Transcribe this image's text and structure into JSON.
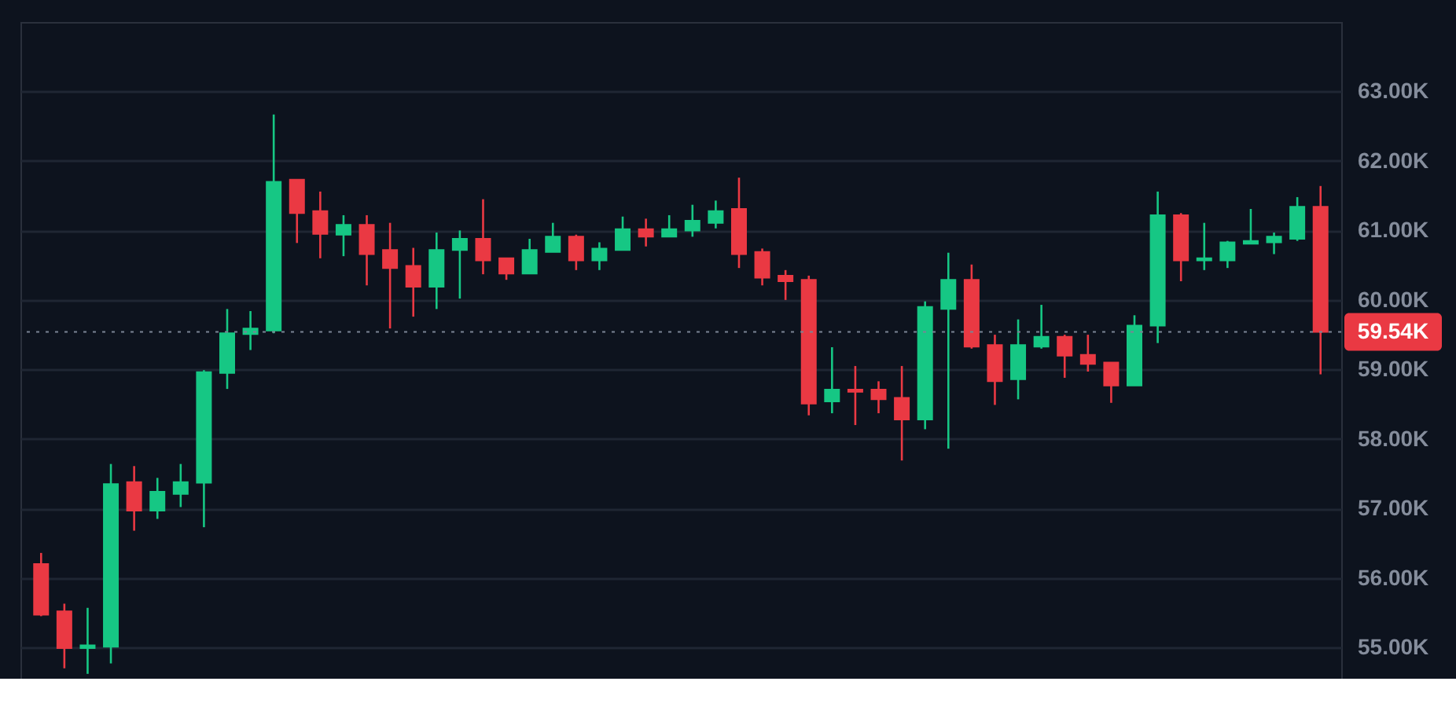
{
  "chart_data": {
    "type": "candlestick",
    "categories": [
      null,
      null,
      null,
      null,
      null,
      null,
      null,
      null,
      null,
      null,
      null,
      null,
      null,
      null,
      null,
      null,
      null,
      null,
      null,
      null,
      null,
      null,
      null,
      null,
      null,
      null,
      null,
      null,
      null,
      null,
      null,
      null,
      null,
      null,
      null,
      null,
      null,
      null,
      null,
      null,
      null,
      null,
      null,
      null,
      null,
      null,
      null,
      null,
      null,
      null,
      null,
      null,
      null,
      null,
      null,
      null
    ],
    "ohlc": [
      [
        56.2,
        56.36,
        55.45,
        55.47
      ],
      [
        55.52,
        55.63,
        54.7,
        54.99
      ],
      [
        54.99,
        55.57,
        54.62,
        55.03
      ],
      [
        55.01,
        57.64,
        54.77,
        57.35
      ],
      [
        57.38,
        57.61,
        56.68,
        56.97
      ],
      [
        56.97,
        57.44,
        56.85,
        57.24
      ],
      [
        57.21,
        57.64,
        57.02,
        57.38
      ],
      [
        57.37,
        58.99,
        56.73,
        58.96
      ],
      [
        58.95,
        59.87,
        58.72,
        59.52
      ],
      [
        59.51,
        59.84,
        59.28,
        59.59
      ],
      [
        59.56,
        62.67,
        59.52,
        61.7
      ],
      [
        61.73,
        61.73,
        60.82,
        61.25
      ],
      [
        61.28,
        61.56,
        60.6,
        60.95
      ],
      [
        60.94,
        61.22,
        60.63,
        61.08
      ],
      [
        61.08,
        61.22,
        60.21,
        60.66
      ],
      [
        60.72,
        61.11,
        59.59,
        60.46
      ],
      [
        60.49,
        60.75,
        59.76,
        60.19
      ],
      [
        60.19,
        60.97,
        59.87,
        60.72
      ],
      [
        60.72,
        61.0,
        60.02,
        60.88
      ],
      [
        60.88,
        61.45,
        60.37,
        60.57
      ],
      [
        60.6,
        60.6,
        60.29,
        60.38
      ],
      [
        60.38,
        60.88,
        60.38,
        60.72
      ],
      [
        60.69,
        61.11,
        60.69,
        60.91
      ],
      [
        60.91,
        60.94,
        60.43,
        60.57
      ],
      [
        60.57,
        60.83,
        60.43,
        60.74
      ],
      [
        60.72,
        61.2,
        60.72,
        61.02
      ],
      [
        61.02,
        61.17,
        60.77,
        60.91
      ],
      [
        60.91,
        61.22,
        60.91,
        61.02
      ],
      [
        61.0,
        61.37,
        60.91,
        61.14
      ],
      [
        61.11,
        61.43,
        61.03,
        61.28
      ],
      [
        61.31,
        61.76,
        60.46,
        60.66
      ],
      [
        60.69,
        60.74,
        60.21,
        60.32
      ],
      [
        60.35,
        60.43,
        60.0,
        60.27
      ],
      [
        60.29,
        60.35,
        58.34,
        58.51
      ],
      [
        58.54,
        59.32,
        58.37,
        58.71
      ],
      [
        58.71,
        59.05,
        58.2,
        58.68
      ],
      [
        58.71,
        58.83,
        58.37,
        58.57
      ],
      [
        58.59,
        59.05,
        57.69,
        58.28
      ],
      [
        58.28,
        59.98,
        58.14,
        59.9
      ],
      [
        59.87,
        60.68,
        57.86,
        60.29
      ],
      [
        60.29,
        60.51,
        59.3,
        59.33
      ],
      [
        59.35,
        59.5,
        58.49,
        58.83
      ],
      [
        58.86,
        59.72,
        58.57,
        59.35
      ],
      [
        59.33,
        59.93,
        59.3,
        59.47
      ],
      [
        59.47,
        59.5,
        58.88,
        59.2
      ],
      [
        59.21,
        59.5,
        58.97,
        59.08
      ],
      [
        59.1,
        59.1,
        58.52,
        58.77
      ],
      [
        58.77,
        59.78,
        58.77,
        59.63
      ],
      [
        59.63,
        61.56,
        59.38,
        61.22
      ],
      [
        61.22,
        61.25,
        60.27,
        60.57
      ],
      [
        60.57,
        61.11,
        60.43,
        60.6
      ],
      [
        60.57,
        60.85,
        60.46,
        60.83
      ],
      [
        60.81,
        61.31,
        60.81,
        60.85
      ],
      [
        60.83,
        60.97,
        60.66,
        60.91
      ],
      [
        60.88,
        61.48,
        60.85,
        61.34
      ],
      [
        61.34,
        61.64,
        58.93,
        59.54
      ]
    ],
    "colors": [
      "#ea3943",
      "#ea3943",
      "#16c784",
      "#16c784",
      "#ea3943",
      "#16c784",
      "#16c784",
      "#16c784",
      "#16c784",
      "#16c784",
      "#16c784",
      "#ea3943",
      "#ea3943",
      "#16c784",
      "#ea3943",
      "#ea3943",
      "#ea3943",
      "#16c784",
      "#16c784",
      "#ea3943",
      "#ea3943",
      "#16c784",
      "#16c784",
      "#ea3943",
      "#16c784",
      "#16c784",
      "#ea3943",
      "#16c784",
      "#16c784",
      "#16c784",
      "#ea3943",
      "#ea3943",
      "#ea3943",
      "#ea3943",
      "#16c784",
      "#ea3943",
      "#ea3943",
      "#ea3943",
      "#16c784",
      "#16c784",
      "#ea3943",
      "#ea3943",
      "#16c784",
      "#16c784",
      "#ea3943",
      "#ea3943",
      "#ea3943",
      "#16c784",
      "#16c784",
      "#ea3943",
      "#16c784",
      "#16c784",
      "#16c784",
      "#16c784",
      "#16c784",
      "#ea3943"
    ],
    "ylim": [
      54.55,
      64.0
    ],
    "yticks": [
      {
        "value": 55,
        "label": "55.00K"
      },
      {
        "value": 56,
        "label": "56.00K"
      },
      {
        "value": 57,
        "label": "57.00K"
      },
      {
        "value": 58,
        "label": "58.00K"
      },
      {
        "value": 59,
        "label": "59.00K"
      },
      {
        "value": 60,
        "label": "60.00K"
      },
      {
        "value": 61,
        "label": "61.00K"
      },
      {
        "value": 62,
        "label": "62.00K"
      },
      {
        "value": 63,
        "label": "63.00K"
      }
    ],
    "grid": "y",
    "tick_labels": "y",
    "ref_lines": [
      {
        "axis": "y",
        "value": 59.54,
        "label": "59.54K",
        "line_style": "dotted"
      }
    ]
  }
}
